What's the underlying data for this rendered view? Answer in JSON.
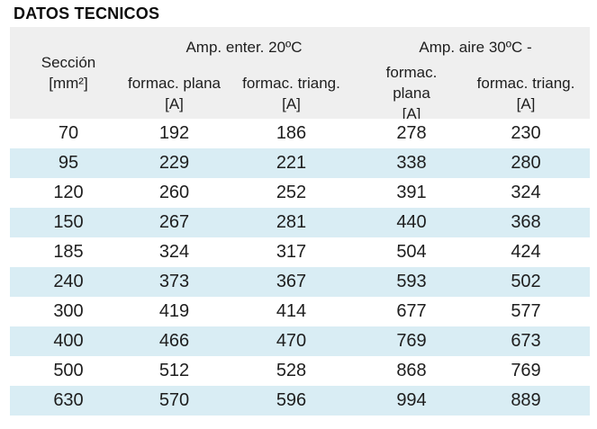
{
  "title": "DATOS TECNICOS",
  "table": {
    "header": {
      "seccion": "Sección\n[mm²]",
      "group_enterrado": "Amp. enter. 20ºC",
      "group_aire": "Amp. aire 30ºC -",
      "enter_plana": "formac. plana\n[A]",
      "enter_triang": "formac. triang.\n[A]",
      "aire_plana": "formac.\nplana\n[A]",
      "aire_triang": "formac. triang.\n[A]"
    },
    "rows": [
      {
        "seccion": 70,
        "enter_plana": 192,
        "enter_triang": 186,
        "aire_plana": 278,
        "aire_triang": 230
      },
      {
        "seccion": 95,
        "enter_plana": 229,
        "enter_triang": 221,
        "aire_plana": 338,
        "aire_triang": 280
      },
      {
        "seccion": 120,
        "enter_plana": 260,
        "enter_triang": 252,
        "aire_plana": 391,
        "aire_triang": 324
      },
      {
        "seccion": 150,
        "enter_plana": 267,
        "enter_triang": 281,
        "aire_plana": 440,
        "aire_triang": 368
      },
      {
        "seccion": 185,
        "enter_plana": 324,
        "enter_triang": 317,
        "aire_plana": 504,
        "aire_triang": 424
      },
      {
        "seccion": 240,
        "enter_plana": 373,
        "enter_triang": 367,
        "aire_plana": 593,
        "aire_triang": 502
      },
      {
        "seccion": 300,
        "enter_plana": 419,
        "enter_triang": 414,
        "aire_plana": 677,
        "aire_triang": 577
      },
      {
        "seccion": 400,
        "enter_plana": 466,
        "enter_triang": 470,
        "aire_plana": 769,
        "aire_triang": 673
      },
      {
        "seccion": 500,
        "enter_plana": 512,
        "enter_triang": 528,
        "aire_plana": 868,
        "aire_triang": 769
      },
      {
        "seccion": 630,
        "enter_plana": 570,
        "enter_triang": 596,
        "aire_plana": 994,
        "aire_triang": 889
      }
    ]
  },
  "colors": {
    "header_bg": "#efefef",
    "stripe_bg": "#d9edf4",
    "text": "#1e1e1e"
  }
}
